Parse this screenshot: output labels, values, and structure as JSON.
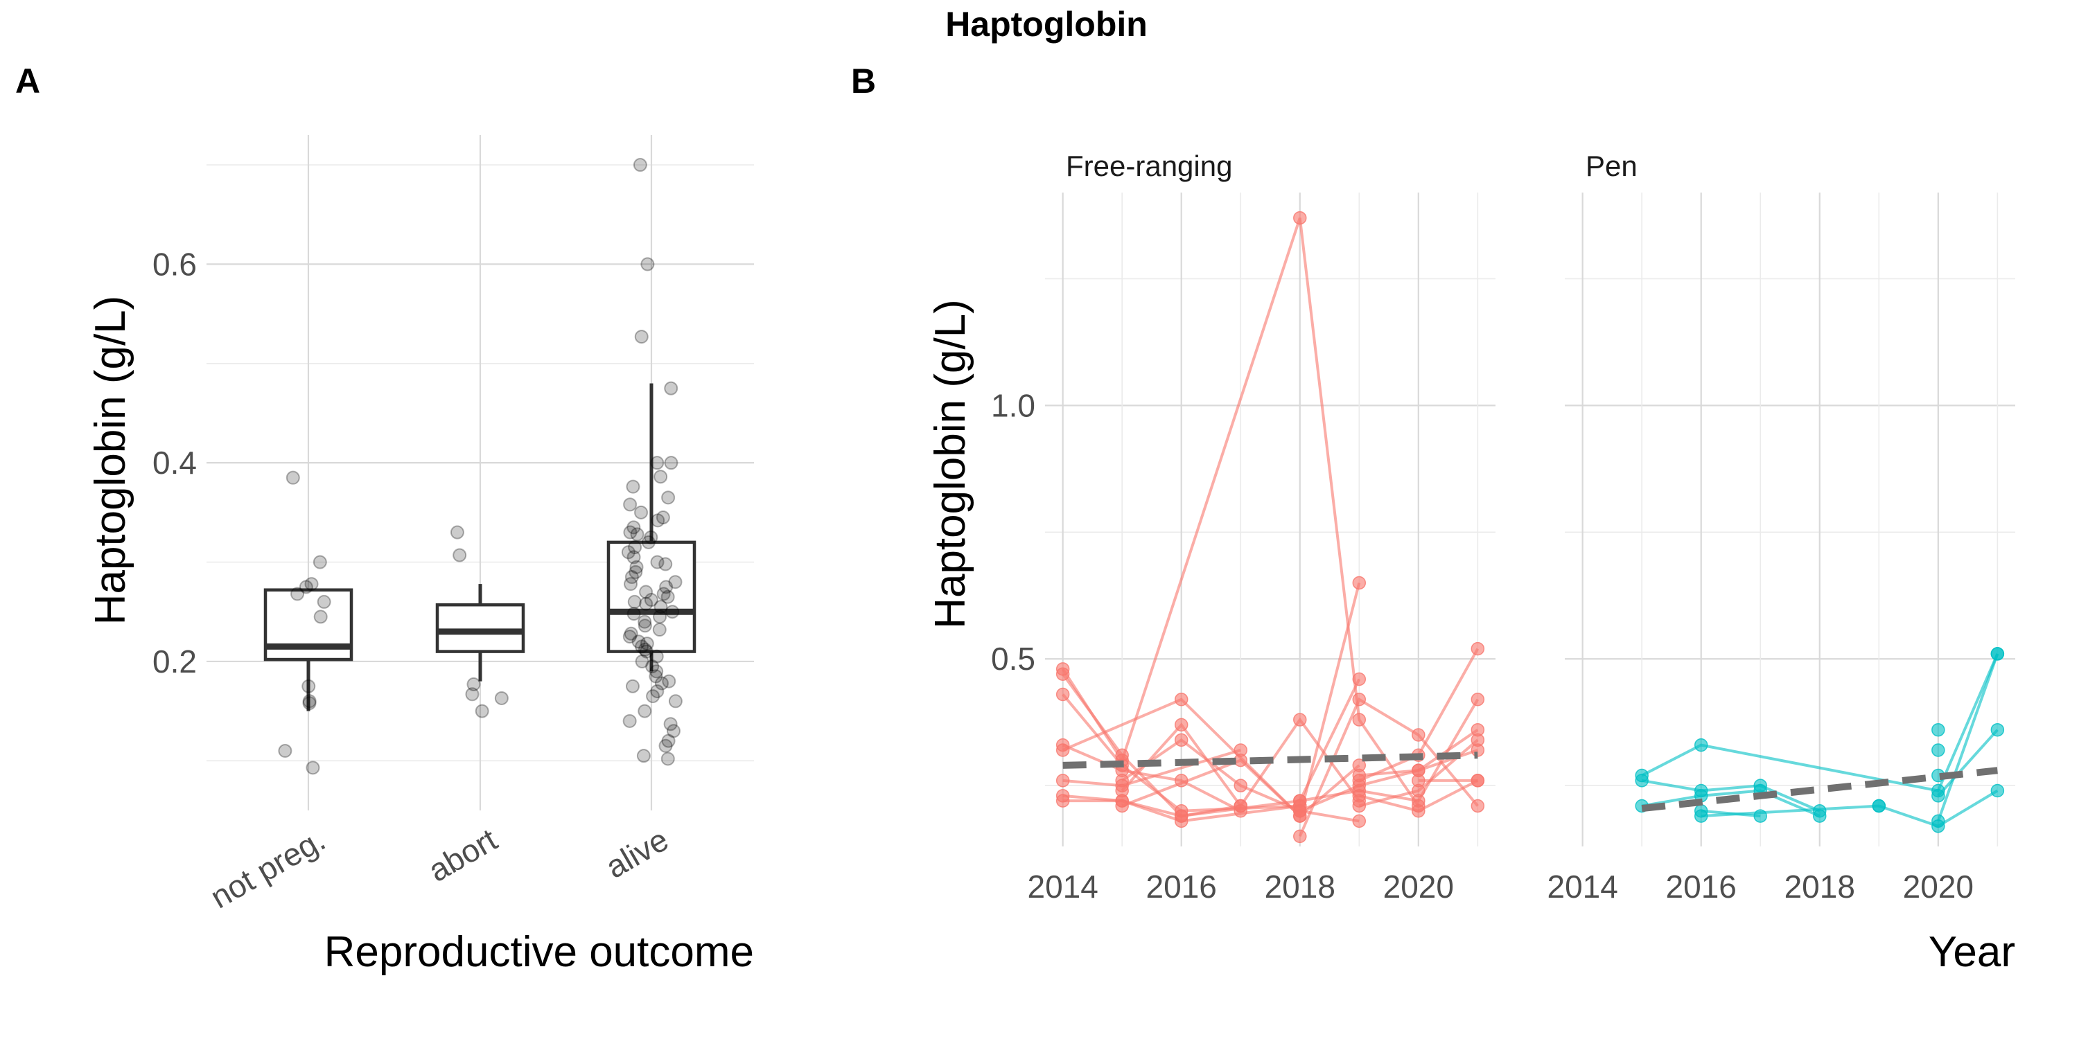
{
  "figure": {
    "title": "Haptoglobin",
    "panel_a_label": "A",
    "panel_b_label": "B"
  },
  "chart_data": [
    {
      "type": "box",
      "panel": "A",
      "xlabel": "Reproductive outcome",
      "ylabel": "Haptoglobin (g/L)",
      "ylim": [
        0.05,
        0.73
      ],
      "yticks": [
        0.2,
        0.4,
        0.6
      ],
      "ytick_labels": [
        "0.2",
        "0.4",
        "0.6"
      ],
      "grid": true,
      "categories": [
        "not preg.",
        "abort",
        "alive"
      ],
      "boxes": [
        {
          "category": "not preg.",
          "lower_whisker": 0.15,
          "q1": 0.202,
          "median": 0.215,
          "q3": 0.272,
          "upper_whisker": 0.272
        },
        {
          "category": "abort",
          "lower_whisker": 0.18,
          "q1": 0.21,
          "median": 0.23,
          "q3": 0.257,
          "upper_whisker": 0.278
        },
        {
          "category": "alive",
          "lower_whisker": 0.19,
          "q1": 0.21,
          "median": 0.25,
          "q3": 0.32,
          "upper_whisker": 0.48
        }
      ],
      "points": [
        {
          "category": "not preg.",
          "values": [
            0.385,
            0.3,
            0.278,
            0.275,
            0.268,
            0.26,
            0.245,
            0.175,
            0.16,
            0.158,
            0.11,
            0.093
          ]
        },
        {
          "category": "abort",
          "values": [
            0.33,
            0.307,
            0.177,
            0.167,
            0.163,
            0.15
          ]
        },
        {
          "category": "alive",
          "values": [
            0.7,
            0.6,
            0.527,
            0.475,
            0.4,
            0.4,
            0.386,
            0.376,
            0.365,
            0.358,
            0.35,
            0.345,
            0.342,
            0.335,
            0.33,
            0.328,
            0.325,
            0.32,
            0.315,
            0.31,
            0.305,
            0.3,
            0.298,
            0.295,
            0.29,
            0.285,
            0.28,
            0.278,
            0.275,
            0.27,
            0.268,
            0.265,
            0.262,
            0.26,
            0.258,
            0.255,
            0.25,
            0.248,
            0.245,
            0.24,
            0.236,
            0.232,
            0.228,
            0.225,
            0.22,
            0.218,
            0.215,
            0.212,
            0.21,
            0.205,
            0.2,
            0.195,
            0.19,
            0.185,
            0.18,
            0.178,
            0.175,
            0.17,
            0.165,
            0.16,
            0.15,
            0.14,
            0.137,
            0.13,
            0.12,
            0.115,
            0.105,
            0.102
          ]
        }
      ]
    },
    {
      "type": "line",
      "panel": "B",
      "facet": "Free-ranging",
      "ylabel": "Haptoglobin (g/L)",
      "xlim": [
        2013.7,
        2021.3
      ],
      "ylim": [
        0.13,
        1.42
      ],
      "xticks": [
        2014,
        2016,
        2018,
        2020
      ],
      "xtick_labels": [
        "2014",
        "2016",
        "2018",
        "2020"
      ],
      "yticks": [
        0.5,
        1.0
      ],
      "ytick_labels": [
        "0.5",
        "1.0"
      ],
      "grid": true,
      "color": "#F8766D",
      "trend": {
        "x": [
          2014,
          2021
        ],
        "y": [
          0.29,
          0.31
        ]
      },
      "individuals": [
        {
          "x": [
            2014,
            2015,
            2018,
            2019,
            2020
          ],
          "y": [
            0.48,
            0.3,
            1.37,
            0.38,
            0.21
          ]
        },
        {
          "x": [
            2014,
            2015,
            2016,
            2017
          ],
          "y": [
            0.47,
            0.31,
            0.19,
            0.21
          ]
        },
        {
          "x": [
            2014,
            2015,
            2016,
            2018
          ],
          "y": [
            0.43,
            0.29,
            0.2,
            0.21
          ]
        },
        {
          "x": [
            2014,
            2015,
            2016,
            2017
          ],
          "y": [
            0.33,
            0.28,
            0.26,
            0.2
          ]
        },
        {
          "x": [
            2014,
            2016,
            2018,
            2019
          ],
          "y": [
            0.32,
            0.42,
            0.19,
            0.65
          ]
        },
        {
          "x": [
            2014,
            2015,
            2017
          ],
          "y": [
            0.26,
            0.25,
            0.32
          ]
        },
        {
          "x": [
            2014,
            2015,
            2016,
            2018
          ],
          "y": [
            0.23,
            0.22,
            0.18,
            0.21
          ]
        },
        {
          "x": [
            2014,
            2015,
            2016,
            2018,
            2019
          ],
          "y": [
            0.22,
            0.22,
            0.19,
            0.22,
            0.46
          ]
        },
        {
          "x": [
            2015,
            2016,
            2017,
            2018,
            2019
          ],
          "y": [
            0.26,
            0.34,
            0.25,
            0.2,
            0.18
          ]
        },
        {
          "x": [
            2015,
            2016,
            2017,
            2018,
            2019
          ],
          "y": [
            0.24,
            0.37,
            0.21,
            0.38,
            0.22
          ]
        },
        {
          "x": [
            2015,
            2017,
            2018,
            2019
          ],
          "y": [
            0.21,
            0.3,
            0.19,
            0.29
          ]
        },
        {
          "x": [
            2018,
            2019,
            2020,
            2021
          ],
          "y": [
            0.15,
            0.42,
            0.35,
            0.21
          ]
        },
        {
          "x": [
            2018,
            2019,
            2020,
            2021
          ],
          "y": [
            0.22,
            0.24,
            0.22,
            0.42
          ]
        },
        {
          "x": [
            2018,
            2019,
            2020,
            2021
          ],
          "y": [
            0.2,
            0.25,
            0.28,
            0.36
          ]
        },
        {
          "x": [
            2019,
            2020,
            2021
          ],
          "y": [
            0.26,
            0.31,
            0.52
          ]
        },
        {
          "x": [
            2019,
            2020,
            2021
          ],
          "y": [
            0.23,
            0.2,
            0.26
          ]
        },
        {
          "x": [
            2019,
            2020,
            2021
          ],
          "y": [
            0.27,
            0.28,
            0.32
          ]
        },
        {
          "x": [
            2019,
            2020,
            2021
          ],
          "y": [
            0.21,
            0.24,
            0.34
          ]
        },
        {
          "x": [
            2020,
            2021
          ],
          "y": [
            0.26,
            0.26
          ]
        }
      ]
    },
    {
      "type": "line",
      "panel": "B",
      "facet": "Pen",
      "xlabel": "Year",
      "xlim": [
        2013.7,
        2021.3
      ],
      "ylim": [
        0.13,
        1.42
      ],
      "xticks": [
        2014,
        2016,
        2018,
        2020
      ],
      "xtick_labels": [
        "2014",
        "2016",
        "2018",
        "2020"
      ],
      "grid": true,
      "color": "#00BFC4",
      "trend": {
        "x": [
          2015,
          2021
        ],
        "y": [
          0.205,
          0.28
        ]
      },
      "individuals": [
        {
          "x": [
            2015,
            2016,
            2020,
            2021
          ],
          "y": [
            0.27,
            0.33,
            0.24,
            0.51
          ]
        },
        {
          "x": [
            2015,
            2016,
            2017,
            2018
          ],
          "y": [
            0.26,
            0.24,
            0.25,
            0.2
          ]
        },
        {
          "x": [
            2015,
            2016,
            2017,
            2018
          ],
          "y": [
            0.21,
            0.23,
            0.24,
            0.19
          ]
        },
        {
          "x": [
            2016,
            2017
          ],
          "y": [
            0.2,
            0.19
          ]
        },
        {
          "x": [
            2016,
            2019
          ],
          "y": [
            0.19,
            0.21
          ]
        },
        {
          "x": [
            2019,
            2020,
            2021
          ],
          "y": [
            0.21,
            0.17,
            0.24
          ]
        },
        {
          "x": [
            2020,
            2021
          ],
          "y": [
            0.18,
            0.51
          ]
        },
        {
          "x": [
            2020,
            2021
          ],
          "y": [
            0.23,
            0.36
          ]
        },
        {
          "x": [
            2020
          ],
          "y": [
            0.36
          ]
        },
        {
          "x": [
            2020
          ],
          "y": [
            0.32
          ]
        },
        {
          "x": [
            2020
          ],
          "y": [
            0.27
          ]
        }
      ]
    }
  ]
}
